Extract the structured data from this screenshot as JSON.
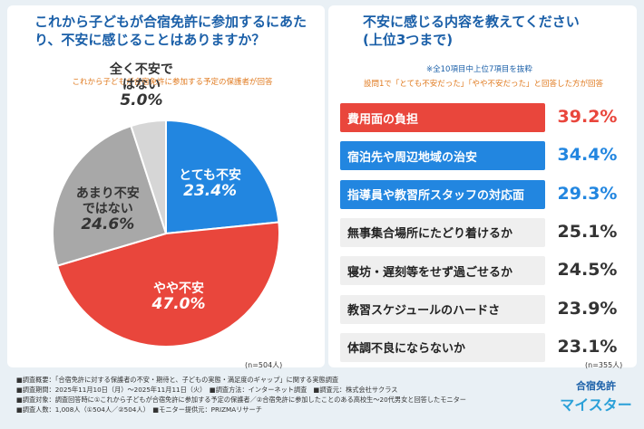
{
  "chart_data": [
    {
      "type": "pie",
      "title": "これから子どもが合宿免許に参加するにあたり、不安に感じることはありますか？",
      "subtitle": "これから子どもが合宿免許に参加する予定の保護者が回答",
      "sample_size": "(n=504人)",
      "categories": [
        "とても不安",
        "やや不安",
        "あまり不安ではない",
        "全く不安ではない"
      ],
      "values": [
        23.4,
        47.0,
        24.6,
        5.0
      ],
      "value_labels": [
        "23.4%",
        "47.0%",
        "24.6%",
        "5.0%"
      ],
      "colors": [
        "#2286e0",
        "#e9463c",
        "#a8a8a8",
        "#d6d6d6"
      ]
    },
    {
      "type": "ranking",
      "title": "不安に感じる内容を教えてください(上位3つまで)",
      "note": "※全10項目中上位7項目を抜粋",
      "subtitle": "設問1で「とても不安だった」「やや不安だった」と回答した方が回答",
      "sample_size": "(n=355人)",
      "categories": [
        "費用面の負担",
        "宿泊先や周辺地域の治安",
        "指導員や教習所スタッフの対応面",
        "無事集合場所にたどり着けるか",
        "寝坊・遅刻等をせず過ごせるか",
        "教習スケジュールのハードさ",
        "体調不良にならないか"
      ],
      "values": [
        39.2,
        34.4,
        29.3,
        25.1,
        24.5,
        23.9,
        23.1
      ],
      "value_labels": [
        "39.2%",
        "34.4%",
        "29.3%",
        "25.1%",
        "24.5%",
        "23.9%",
        "23.1%"
      ],
      "colors": [
        "#e9463c",
        "#2286e0",
        "#2286e0",
        "#efefef",
        "#efefef",
        "#efefef",
        "#efefef"
      ],
      "value_colors": [
        "#e9463c",
        "#2286e0",
        "#2286e0",
        "#333333",
        "#333333",
        "#333333",
        "#333333"
      ]
    }
  ],
  "footer": {
    "lines": [
      "■調査概要：「合宿免許に対する保護者の不安・期待と、子どもの実態・満足度のギャップ」に関する実態調査",
      "■調査期間：2025年11月10日（月）～2025年11月11日（火）　■調査方法：インターネット調査　■調査元：株式会社サクラス",
      "■調査対象：調査回答時に①これから子どもが合宿免許に参加する予定の保護者／②合宿免許に参加したことのある高校生～20代男女と回答したモニター",
      "■調査人数：1,008人（①504人／②504人）　■モニター提供元：PRIZMAリサーチ"
    ],
    "logo_top": "合宿免許",
    "logo_bottom": "マイスター"
  }
}
